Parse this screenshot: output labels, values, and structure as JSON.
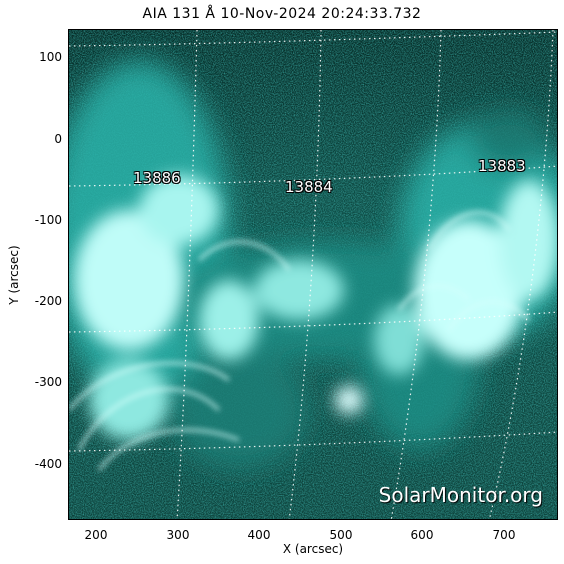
{
  "title": "AIA 131 Å 10-Nov-2024 20:24:33.732",
  "axes": {
    "xlabel": "X (arcsec)",
    "ylabel": "Y (arcsec)",
    "xticks": [
      "200",
      "300",
      "400",
      "500",
      "600",
      "700"
    ],
    "yticks": [
      "100",
      "0",
      "-100",
      "-200",
      "-300",
      "-400"
    ]
  },
  "regions": [
    "13886",
    "13884",
    "13883"
  ],
  "watermark": "SolarMonitor.org",
  "colors": {
    "background": "#0b3a34",
    "bright": "#e8ffff",
    "mid": "#2ec9c0",
    "dark": "#04241f"
  }
}
